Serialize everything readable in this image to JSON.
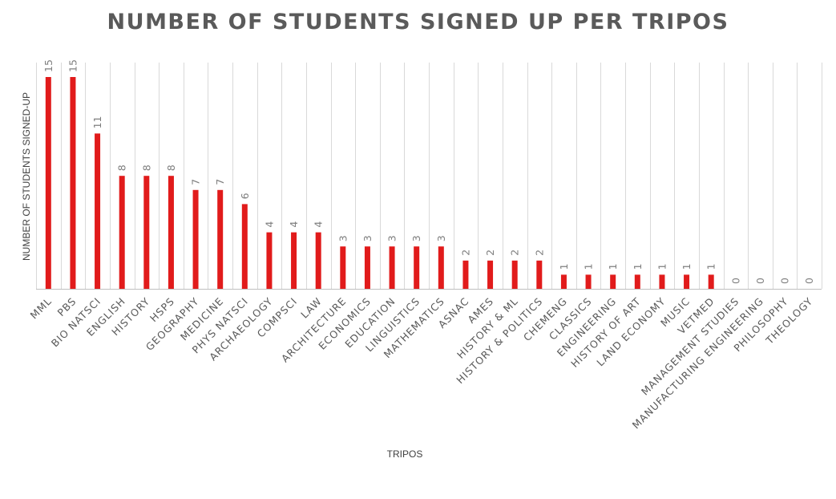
{
  "chart_data": {
    "type": "bar",
    "title": "NUMBER OF STUDENTS SIGNED UP PER TRIPOS",
    "xlabel": "TRIPOS",
    "ylabel": "NUMBER OF STUDENTS SIGNED-UP",
    "categories": [
      "MML",
      "PBS",
      "BIO NATSCI",
      "ENGLISH",
      "HISTORY",
      "HSPS",
      "GEOGRAPHY",
      "MEDICINE",
      "PHYS NATSCI",
      "ARCHAEOLOGY",
      "COMPSCI",
      "LAW",
      "ARCHITECTURE",
      "ECONOMICS",
      "EDUCATION",
      "LINGUISTICS",
      "MATHEMATICS",
      "ASNAC",
      "AMES",
      "HISTORY & ML",
      "HISTORY & POLITICS",
      "CHEMENG",
      "CLASSICS",
      "ENGINEERING",
      "HISTORY OF ART",
      "LAND ECONOMY",
      "MUSIC",
      "VETMED",
      "MANAGEMENT STUDIES",
      "MANUFACTURING ENGINEERING",
      "PHILOSOPHY",
      "THEOLOGY"
    ],
    "values": [
      15,
      15,
      11,
      8,
      8,
      8,
      7,
      7,
      6,
      4,
      4,
      4,
      3,
      3,
      3,
      3,
      3,
      2,
      2,
      2,
      2,
      1,
      1,
      1,
      1,
      1,
      1,
      1,
      0,
      0,
      0,
      0
    ],
    "ylim": [
      0,
      15
    ],
    "grid": "vertical",
    "legend": "none",
    "data_labels": true,
    "colors": {
      "bar": "#e11b1b",
      "grid": "#d9d9d9",
      "axis": "#bfbfbf"
    }
  }
}
